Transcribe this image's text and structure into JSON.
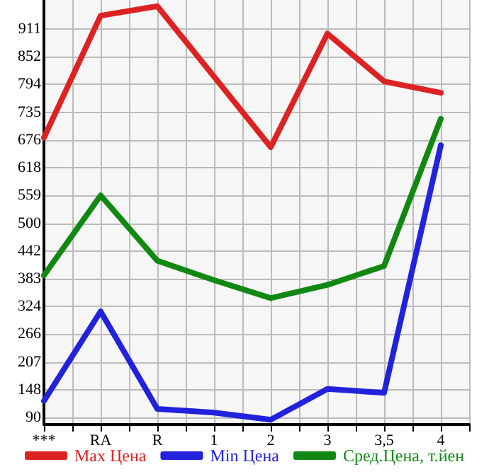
{
  "chart_data": {
    "type": "line",
    "categories": [
      "***",
      "RA",
      "R",
      "1",
      "2",
      "3",
      "3,5",
      "4"
    ],
    "series": [
      {
        "name": "Max Цена",
        "color": "#dd2222",
        "values": [
          681,
          939,
          959,
          810,
          661,
          901,
          800,
          776
        ]
      },
      {
        "name": "Min Цена",
        "color": "#2222dd",
        "values": [
          125,
          314,
          108,
          100,
          85,
          150,
          142,
          665
        ]
      },
      {
        "name": "Сред.Цена, т.йен",
        "color": "#118811",
        "values": [
          390,
          559,
          421,
          380,
          342,
          370,
          410,
          721
        ]
      }
    ],
    "ylim": [
      75,
      972
    ],
    "yticks": [
      90,
      148,
      207,
      266,
      324,
      383,
      442,
      500,
      559,
      618,
      676,
      735,
      794,
      852,
      911
    ],
    "grid": true,
    "legend": "bottom",
    "marker": "none",
    "line_style": "solid"
  }
}
